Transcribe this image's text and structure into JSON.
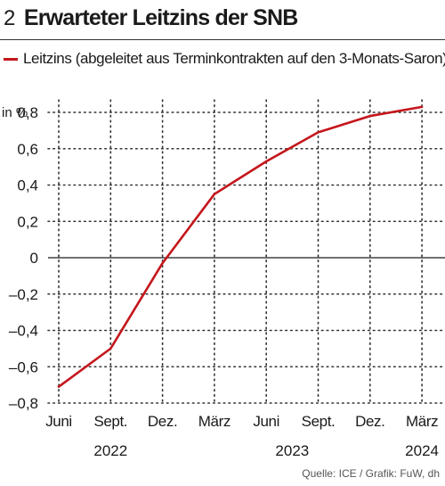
{
  "header": {
    "figure_number": "2",
    "title": "Erwarteter Leitzins der SNB"
  },
  "source": "Quelle: ICE / Grafik: FuW, dh",
  "colors": {
    "series": "#c4161c",
    "axis": "#1a1a1a",
    "grid": "#333333"
  },
  "chart_data": {
    "type": "line",
    "title": "Erwarteter Leitzins der SNB",
    "ylabel": "in %",
    "ylim": [
      -0.8,
      0.8
    ],
    "yticks": [
      0.8,
      0.6,
      0.4,
      0.2,
      0,
      -0.2,
      -0.4,
      -0.6,
      -0.8
    ],
    "ytick_labels": [
      "0,8",
      "0,6",
      "0,4",
      "0,2",
      "0",
      "–0,2",
      "–0,4",
      "–0,6",
      "–0,8"
    ],
    "categories": [
      "Juni",
      "Sept.",
      "Dez.",
      "März",
      "Juni",
      "Sept.",
      "Dez.",
      "März"
    ],
    "years": [
      {
        "label": "2022",
        "from": 0,
        "to": 2
      },
      {
        "label": "2023",
        "from": 3,
        "to": 6
      },
      {
        "label": "2024",
        "from": 7,
        "to": 7
      }
    ],
    "grid": {
      "x": true,
      "y": true,
      "style": "dotted"
    },
    "legend_position": "top-left",
    "series": [
      {
        "name": "Leitzins (abgeleitet aus Terminkontrakten auf den 3-Monats-Saron)",
        "x": [
          0,
          1,
          2,
          3,
          4,
          5,
          6,
          7
        ],
        "values": [
          -0.71,
          -0.5,
          -0.03,
          0.35,
          0.53,
          0.69,
          0.78,
          0.83
        ]
      }
    ]
  }
}
